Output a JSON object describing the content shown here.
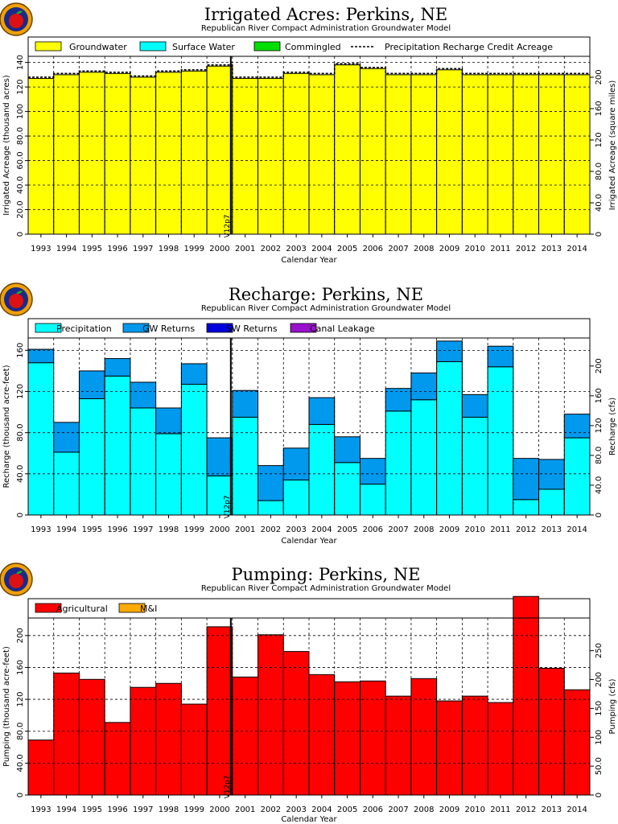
{
  "chart_data": [
    {
      "type": "bar",
      "stacked": true,
      "title": "Irrigated Acres: Perkins, NE",
      "subtitle": "Republican River Compact Administration Groundwater Model",
      "xlabel": "Calendar Year",
      "ylabel": "Irrigated Acreage (thousand acres)",
      "ylabel_right": "Irrigated Acreage (square miles)",
      "categories": [
        "1993",
        "1994",
        "1995",
        "1996",
        "1997",
        "1998",
        "1999",
        "2000",
        "2001",
        "2002",
        "2003",
        "2004",
        "2005",
        "2006",
        "2007",
        "2008",
        "2009",
        "2010",
        "2011",
        "2012",
        "2013",
        "2014"
      ],
      "ylim": [
        0,
        145
      ],
      "yticks": [
        "0",
        "20.0",
        "40.0",
        "60.0",
        "80.0",
        "100",
        "120",
        "140"
      ],
      "ylim_right": [
        0,
        226.6
      ],
      "yticks_right": [
        "0",
        "40.0",
        "80.0",
        "120",
        "160",
        "200"
      ],
      "grid": true,
      "legend_position": "top",
      "series": [
        {
          "name": "Groundwater",
          "color": "#ffff00",
          "values": [
            127,
            130,
            132,
            131,
            128,
            132,
            133,
            137,
            127,
            127,
            131,
            130,
            138,
            135,
            130,
            130,
            134,
            130,
            130,
            130,
            130,
            130
          ]
        },
        {
          "name": "Surface Water",
          "color": "#00ffff",
          "values": [
            0,
            0,
            0,
            0,
            0,
            0,
            0,
            0,
            0,
            0,
            0,
            0,
            0,
            0,
            0,
            0,
            0,
            0,
            0,
            0,
            0,
            0
          ]
        },
        {
          "name": "Commingled",
          "color": "#00dd00",
          "values": [
            0,
            0,
            0,
            0,
            0,
            0,
            0,
            0,
            0,
            0,
            0,
            0,
            0,
            0,
            0,
            0,
            0,
            0,
            0,
            0,
            0,
            0
          ]
        }
      ],
      "line_series": {
        "name": "Precipitation Recharge Credit Acreage",
        "style": "dashed",
        "values": [
          127,
          130,
          132,
          131,
          128,
          132,
          133,
          137,
          127,
          127,
          131,
          130,
          138,
          135,
          130,
          130,
          134,
          130,
          130,
          130,
          130,
          130
        ]
      },
      "marker": {
        "label": "V12p7",
        "year_index": 8
      }
    },
    {
      "type": "bar",
      "stacked": true,
      "title": "Recharge: Perkins, NE",
      "subtitle": "Republican River Compact Administration Groundwater Model",
      "xlabel": "Calendar Year",
      "ylabel": "Recharge (thousand acre-feet)",
      "ylabel_right": "Recharge (cfs)",
      "categories": [
        "1993",
        "1994",
        "1995",
        "1996",
        "1997",
        "1998",
        "1999",
        "2000",
        "2001",
        "2002",
        "2003",
        "2004",
        "2005",
        "2006",
        "2007",
        "2008",
        "2009",
        "2010",
        "2011",
        "2012",
        "2013",
        "2014"
      ],
      "ylim": [
        0,
        172
      ],
      "yticks": [
        "0",
        "40.0",
        "80.0",
        "120",
        "160"
      ],
      "ylim_right": [
        0,
        237.6
      ],
      "yticks_right": [
        "0",
        "40.0",
        "80.0",
        "120",
        "160",
        "200"
      ],
      "grid": true,
      "legend_position": "top",
      "series": [
        {
          "name": "Precipitation",
          "color": "#00ffff",
          "values": [
            148,
            61,
            113,
            135,
            104,
            79,
            127,
            38,
            95,
            14,
            34,
            88,
            51,
            30,
            101,
            112,
            149,
            95,
            144,
            15,
            25,
            75
          ]
        },
        {
          "name": "GW Returns",
          "color": "#0099ee",
          "values": [
            13,
            29,
            27,
            17,
            25,
            25,
            20,
            37,
            26,
            34,
            31,
            26,
            25,
            25,
            22,
            26,
            20,
            22,
            20,
            40,
            29,
            23
          ]
        },
        {
          "name": "SW Returns",
          "color": "#0000dd",
          "values": [
            0,
            0,
            0,
            0,
            0,
            0,
            0,
            0,
            0,
            0,
            0,
            0,
            0,
            0,
            0,
            0,
            0,
            0,
            0,
            0,
            0,
            0
          ]
        },
        {
          "name": "Canal Leakage",
          "color": "#9911cc",
          "values": [
            0,
            0,
            0,
            0,
            0,
            0,
            0,
            0,
            0,
            0,
            0,
            0,
            0,
            0,
            0,
            0,
            0,
            0,
            0,
            0,
            0,
            0
          ]
        }
      ],
      "marker": {
        "label": "V12p7",
        "year_index": 8
      }
    },
    {
      "type": "bar",
      "stacked": true,
      "title": "Pumping: Perkins, NE",
      "subtitle": "Republican River Compact Administration Groundwater Model",
      "xlabel": "Calendar Year",
      "ylabel": "Pumping (thousand acre-feet)",
      "ylabel_right": "Pumping (cfs)",
      "categories": [
        "1993",
        "1994",
        "1995",
        "1996",
        "1997",
        "1998",
        "1999",
        "2000",
        "2001",
        "2002",
        "2003",
        "2004",
        "2005",
        "2006",
        "2007",
        "2008",
        "2009",
        "2010",
        "2011",
        "2012",
        "2013",
        "2014"
      ],
      "ylim": [
        0,
        222
      ],
      "yticks": [
        "0",
        "40.0",
        "80.0",
        "120",
        "160",
        "200"
      ],
      "ylim_right": [
        0,
        306.6
      ],
      "yticks_right": [
        "0",
        "50.0",
        "100",
        "150",
        "200",
        "250"
      ],
      "grid": true,
      "legend_position": "top",
      "series": [
        {
          "name": "Agricultural",
          "color": "#ff0000",
          "values": [
            69,
            153,
            145,
            91,
            135,
            140,
            114,
            211,
            148,
            201,
            180,
            151,
            142,
            143,
            124,
            146,
            118,
            124,
            116,
            249,
            159,
            132
          ]
        },
        {
          "name": "M&I",
          "color": "#ffaa00",
          "values": [
            0,
            0,
            0,
            0,
            0,
            0,
            0,
            0,
            0,
            0,
            0,
            0,
            0,
            0,
            0,
            0,
            0,
            0,
            0,
            0,
            0,
            0
          ]
        }
      ],
      "marker": {
        "label": "V12p7",
        "year_index": 8
      }
    }
  ]
}
